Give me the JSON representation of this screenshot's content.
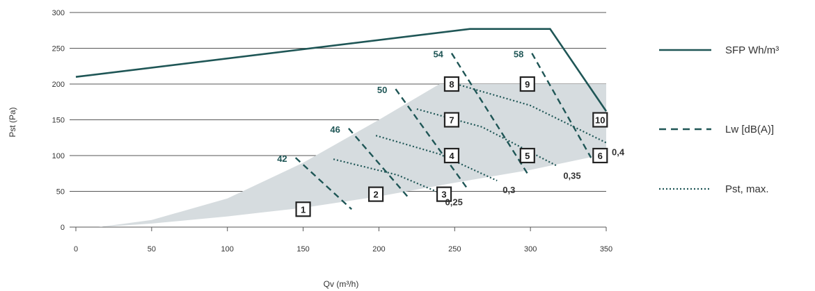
{
  "chart_data": {
    "type": "line",
    "xlabel": "Qv (m³/h)",
    "ylabel": "Pst (Pa)",
    "xlim": [
      0,
      350
    ],
    "ylim": [
      0,
      300
    ],
    "x_ticks": [
      "0",
      "50",
      "100",
      "150",
      "200",
      "250",
      "300",
      "350"
    ],
    "y_ticks": [
      "0",
      "50",
      "100",
      "150",
      "200",
      "250",
      "300"
    ],
    "grid": "horizontal",
    "legend_placement": "right",
    "colors": {
      "sfp": "#1f5656",
      "lw": "#1f5656",
      "pst": "#1f5656",
      "area": "#d6dcdf",
      "grid": "#555555"
    },
    "operating_area": {
      "lower": [
        [
          15,
          0
        ],
        [
          50,
          5
        ],
        [
          100,
          15
        ],
        [
          150,
          27
        ],
        [
          200,
          43
        ],
        [
          250,
          62
        ],
        [
          300,
          80
        ],
        [
          345,
          100
        ]
      ],
      "upper": [
        [
          350,
          100
        ],
        [
          350,
          200
        ],
        [
          240,
          200
        ],
        [
          200,
          150
        ],
        [
          150,
          90
        ],
        [
          100,
          40
        ],
        [
          50,
          10
        ],
        [
          15,
          0
        ]
      ]
    },
    "series": [
      {
        "name": "SFP Wh/m³",
        "style": "solid",
        "points": [
          [
            0,
            210
          ],
          [
            260,
            277
          ],
          [
            313,
            277
          ],
          [
            350,
            162
          ]
        ]
      },
      {
        "name": "Lw [dB(A)]",
        "style": "dashed",
        "lines": [
          {
            "label": "42",
            "points": [
              [
                145,
                97
              ],
              [
                182,
                25
              ]
            ]
          },
          {
            "label": "46",
            "points": [
              [
                180,
                138
              ],
              [
                220,
                40
              ]
            ]
          },
          {
            "label": "50",
            "points": [
              [
                211,
                193
              ],
              [
                258,
                55
              ]
            ]
          },
          {
            "label": "54",
            "points": [
              [
                248,
                243
              ],
              [
                298,
                75
              ]
            ]
          },
          {
            "label": "58",
            "points": [
              [
                301,
                243
              ],
              [
                340,
                97
              ]
            ]
          }
        ]
      },
      {
        "name": "Pst, max.",
        "style": "dotted",
        "lines": [
          {
            "label": "0,25",
            "points": [
              [
                170,
                95
              ],
              [
                212,
                73
              ],
              [
                240,
                48
              ]
            ]
          },
          {
            "label": "0,3",
            "points": [
              [
                198,
                128
              ],
              [
                240,
                102
              ],
              [
                278,
                65
              ]
            ]
          },
          {
            "label": "0,35",
            "points": [
              [
                225,
                165
              ],
              [
                268,
                140
              ],
              [
                318,
                85
              ]
            ]
          },
          {
            "label": "0,4",
            "points": [
              [
                251,
                200
              ],
              [
                300,
                170
              ],
              [
                350,
                118
              ]
            ]
          }
        ]
      }
    ],
    "numbered_points": [
      {
        "label": "1",
        "x": 150,
        "y": 25
      },
      {
        "label": "2",
        "x": 198,
        "y": 46
      },
      {
        "label": "3",
        "x": 243,
        "y": 46
      },
      {
        "label": "4",
        "x": 248,
        "y": 100
      },
      {
        "label": "5",
        "x": 298,
        "y": 100
      },
      {
        "label": "6",
        "x": 346,
        "y": 100
      },
      {
        "label": "7",
        "x": 248,
        "y": 150
      },
      {
        "label": "8",
        "x": 248,
        "y": 200
      },
      {
        "label": "9",
        "x": 298,
        "y": 200
      },
      {
        "label": "10",
        "x": 346,
        "y": 150
      }
    ]
  }
}
